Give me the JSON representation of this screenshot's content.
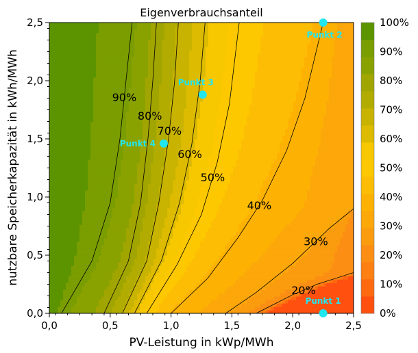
{
  "chart_data": {
    "type": "contour",
    "title": "Eigenverbrauchsanteil",
    "xlabel": "PV-Leistung in kWp/MWh",
    "ylabel": "nutzbare Speicherkapazität in kWh/MWh",
    "xlim": [
      0,
      2.5
    ],
    "ylim": [
      0,
      2.5
    ],
    "x_ticks": [
      "0,0",
      "0,5",
      "1,0",
      "1,5",
      "2,0",
      "2,5"
    ],
    "y_ticks": [
      "0,0",
      "0,5",
      "1,0",
      "1,5",
      "2,0",
      "2,5"
    ],
    "colorbar": {
      "min": 0,
      "max": 100,
      "step": 5,
      "tick_labels": [
        "0%",
        "10%",
        "20%",
        "30%",
        "40%",
        "50%",
        "60%",
        "70%",
        "80%",
        "90%",
        "100%"
      ],
      "colors": [
        "#ff5010",
        "#ff6a10",
        "#fe7f12",
        "#fc8e14",
        "#fb9b0e",
        "#fca70a",
        "#fdb203",
        "#fdbd05",
        "#fdc800",
        "#f7c800",
        "#dcbb00",
        "#c8b300",
        "#b2ac00",
        "#a1a500",
        "#8aa200",
        "#7a9d00",
        "#5c9400"
      ]
    },
    "contour_levels": [
      {
        "label": "20%",
        "value": 20,
        "points": [
          [
            1.7,
            0
          ],
          [
            2.0,
            0.16
          ],
          [
            2.2,
            0.25
          ],
          [
            2.5,
            0.35
          ]
        ]
      },
      {
        "label": "30%",
        "value": 30,
        "points": [
          [
            1.45,
            0
          ],
          [
            1.7,
            0.18
          ],
          [
            2.0,
            0.43
          ],
          [
            2.3,
            0.73
          ],
          [
            2.5,
            0.9
          ]
        ]
      },
      {
        "label": "40%",
        "value": 40,
        "points": [
          [
            1.0,
            0
          ],
          [
            1.3,
            0.3
          ],
          [
            1.55,
            0.65
          ],
          [
            1.75,
            0.97
          ],
          [
            1.95,
            1.4
          ],
          [
            2.1,
            1.85
          ],
          [
            2.25,
            2.5
          ]
        ]
      },
      {
        "label": "50%",
        "value": 50,
        "points": [
          [
            0.8,
            0
          ],
          [
            1.05,
            0.42
          ],
          [
            1.25,
            0.85
          ],
          [
            1.38,
            1.3
          ],
          [
            1.48,
            1.8
          ],
          [
            1.56,
            2.5
          ]
        ]
      },
      {
        "label": "60%",
        "value": 60,
        "points": [
          [
            0.7,
            0
          ],
          [
            0.92,
            0.45
          ],
          [
            1.07,
            0.95
          ],
          [
            1.17,
            1.45
          ],
          [
            1.24,
            2.0
          ],
          [
            1.28,
            2.5
          ]
        ]
      },
      {
        "label": "70%",
        "value": 70,
        "points": [
          [
            0.6,
            0
          ],
          [
            0.8,
            0.45
          ],
          [
            0.9,
            0.95
          ],
          [
            0.98,
            1.5
          ],
          [
            1.03,
            2.0
          ],
          [
            1.06,
            2.5
          ]
        ]
      },
      {
        "label": "80%",
        "value": 80,
        "points": [
          [
            0.45,
            0
          ],
          [
            0.65,
            0.45
          ],
          [
            0.75,
            0.95
          ],
          [
            0.81,
            1.5
          ],
          [
            0.85,
            2.0
          ],
          [
            0.88,
            2.5
          ]
        ]
      },
      {
        "label": "90%",
        "value": 90,
        "points": [
          [
            0.1,
            0
          ],
          [
            0.35,
            0.45
          ],
          [
            0.5,
            0.95
          ],
          [
            0.58,
            1.5
          ],
          [
            0.63,
            2.0
          ],
          [
            0.68,
            2.5
          ]
        ]
      }
    ],
    "points": [
      {
        "label": "Punkt 1",
        "x": 2.25,
        "y": 0.0
      },
      {
        "label": "Punkt 2",
        "x": 2.25,
        "y": 2.5
      },
      {
        "label": "Punkt 3",
        "x": 1.26,
        "y": 1.88
      },
      {
        "label": "Punkt 4",
        "x": 0.94,
        "y": 1.46
      }
    ]
  }
}
